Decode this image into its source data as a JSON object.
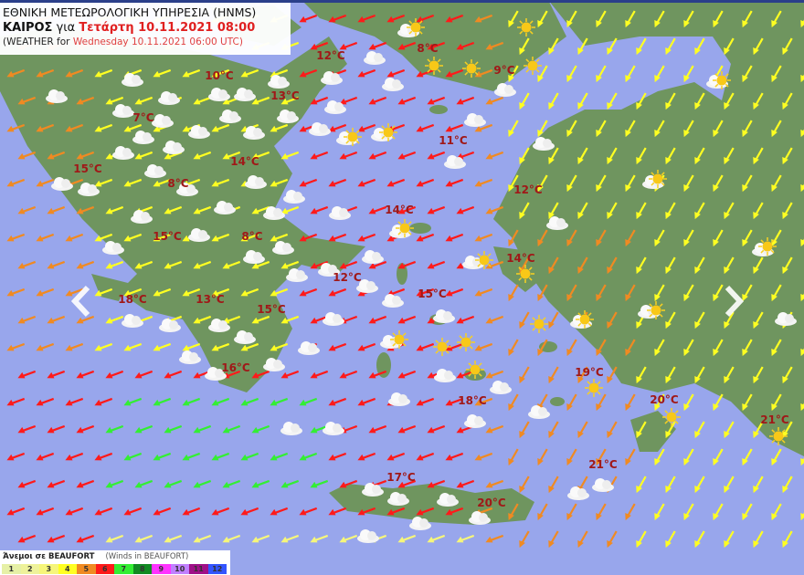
{
  "header": {
    "agency": "ΕΘΝΙΚΗ ΜΕΤΕΩΡΟΛΟΓΙΚΗ ΥΠΗΡΕΣΙΑ (HNMS)",
    "weather_gr": "ΚΑΙΡΟΣ",
    "for_gr": "για",
    "datetime_gr": "Τετάρτη 10.11.2021 08:00",
    "weather_en": "(WEATHER for",
    "datetime_en": "Wednesday 10.11.2021 06:00 UTC)"
  },
  "legend": {
    "title_gr": "Άνεμοι σε BEAUFORT",
    "title_en": "(Winds in BEAUFORT)",
    "scale": [
      {
        "label": "1",
        "color": "#e6f0a6"
      },
      {
        "label": "2",
        "color": "#eef29a"
      },
      {
        "label": "3",
        "color": "#f6f67a"
      },
      {
        "label": "4",
        "color": "#ffff22"
      },
      {
        "label": "5",
        "color": "#f08a22"
      },
      {
        "label": "6",
        "color": "#ff1a1a"
      },
      {
        "label": "7",
        "color": "#33ee33"
      },
      {
        "label": "8",
        "color": "#118a22"
      },
      {
        "label": "9",
        "color": "#ff33ff"
      },
      {
        "label": "10",
        "color": "#c080ff"
      },
      {
        "label": "11",
        "color": "#a01088"
      },
      {
        "label": "12",
        "color": "#3355ff"
      }
    ]
  },
  "colors": {
    "sea": "#98a6ec",
    "land": "#6f955f",
    "temp": "#a01818"
  },
  "temperatures": [
    "8°C",
    "12°C",
    "9°C",
    "10°C",
    "13°C",
    "7°C",
    "11°C",
    "15°C",
    "14°C",
    "8°C",
    "12°C",
    "14°C",
    "15°C",
    "8°C",
    "14°C",
    "12°C",
    "15°C",
    "18°C",
    "13°C",
    "15°C",
    "19°C",
    "16°C",
    "18°C",
    "20°C",
    "21°C",
    "21°C",
    "17°C",
    "20°C"
  ],
  "nav": {
    "prev": "chevron-left-icon",
    "next": "chevron-right-icon"
  }
}
